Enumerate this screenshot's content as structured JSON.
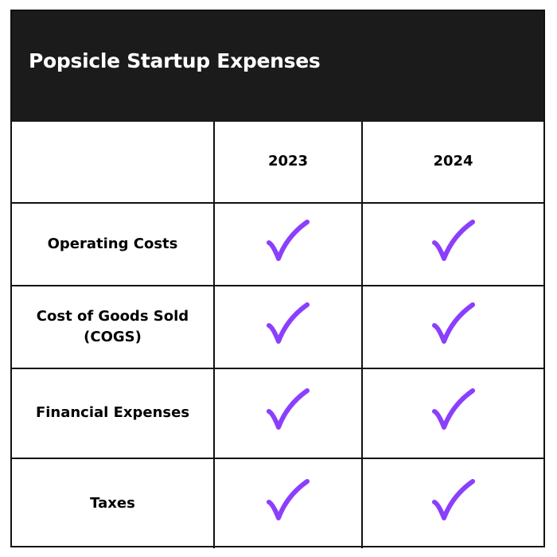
{
  "title": "Popsicle Startup Expenses",
  "columns": [
    "",
    "2023",
    "2024"
  ],
  "rows": [
    {
      "label": "Operating Costs",
      "values": [
        true,
        true
      ]
    },
    {
      "label": "Cost of Goods Sold (COGS)",
      "values": [
        true,
        true
      ]
    },
    {
      "label": "Financial Expenses",
      "values": [
        true,
        true
      ]
    },
    {
      "label": "Taxes",
      "values": [
        true,
        true
      ]
    }
  ],
  "icons": {
    "check": "checkmark-icon"
  },
  "colors": {
    "header_bg": "#1b1b1b",
    "check": "#8b3ffd"
  }
}
